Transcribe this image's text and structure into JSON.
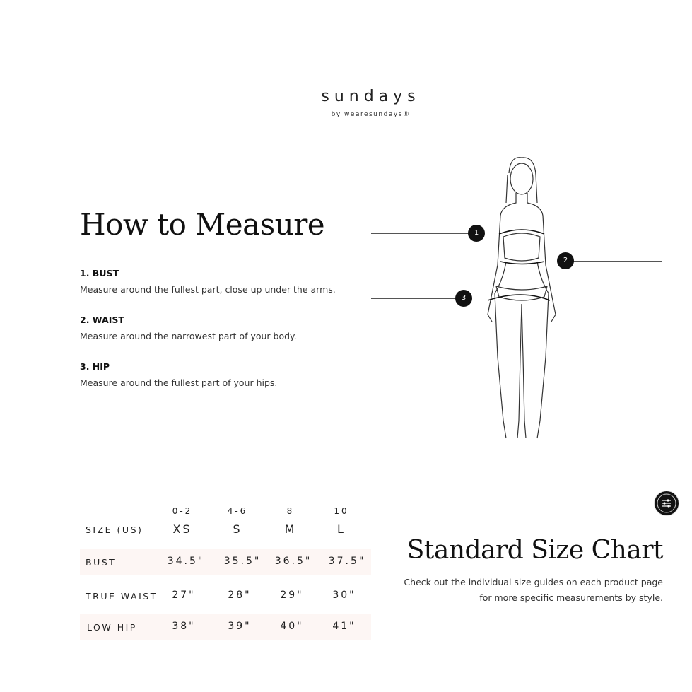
{
  "brand": {
    "name": "sundays",
    "tagline": "by wearesundays®"
  },
  "how_to_measure": {
    "title": "How to Measure",
    "items": [
      {
        "title": "1. BUST",
        "desc": "Measure around the fullest part, close up under the arms.",
        "marker": "1"
      },
      {
        "title": "2. WAIST",
        "desc": "Measure around the narrowest part of your body.",
        "marker": "2"
      },
      {
        "title": "3. HIP",
        "desc": "Measure around the fullest part of your hips.",
        "marker": "3"
      }
    ]
  },
  "size_table": {
    "header_label": "SIZE (US)",
    "columns": [
      {
        "num": "0-2",
        "size": "XS"
      },
      {
        "num": "4-6",
        "size": "S"
      },
      {
        "num": "8",
        "size": "M"
      },
      {
        "num": "10",
        "size": "L"
      }
    ],
    "rows": [
      {
        "label": "BUST",
        "values": [
          "34.5\"",
          "35.5\"",
          "36.5\"",
          "37.5\""
        ]
      },
      {
        "label": "TRUE WAIST",
        "values": [
          "27\"",
          "28\"",
          "29\"",
          "30\""
        ]
      },
      {
        "label": "LOW HIP",
        "values": [
          "38\"",
          "39\"",
          "40\"",
          "41\""
        ]
      }
    ],
    "row_shade_color": "#fdf6f4"
  },
  "standard": {
    "title": "Standard Size Chart",
    "note_line1": "Check out the individual size guides on each product page",
    "note_line2": "for more specific measurements by style."
  },
  "fab": {
    "icon": "sliders-icon"
  }
}
